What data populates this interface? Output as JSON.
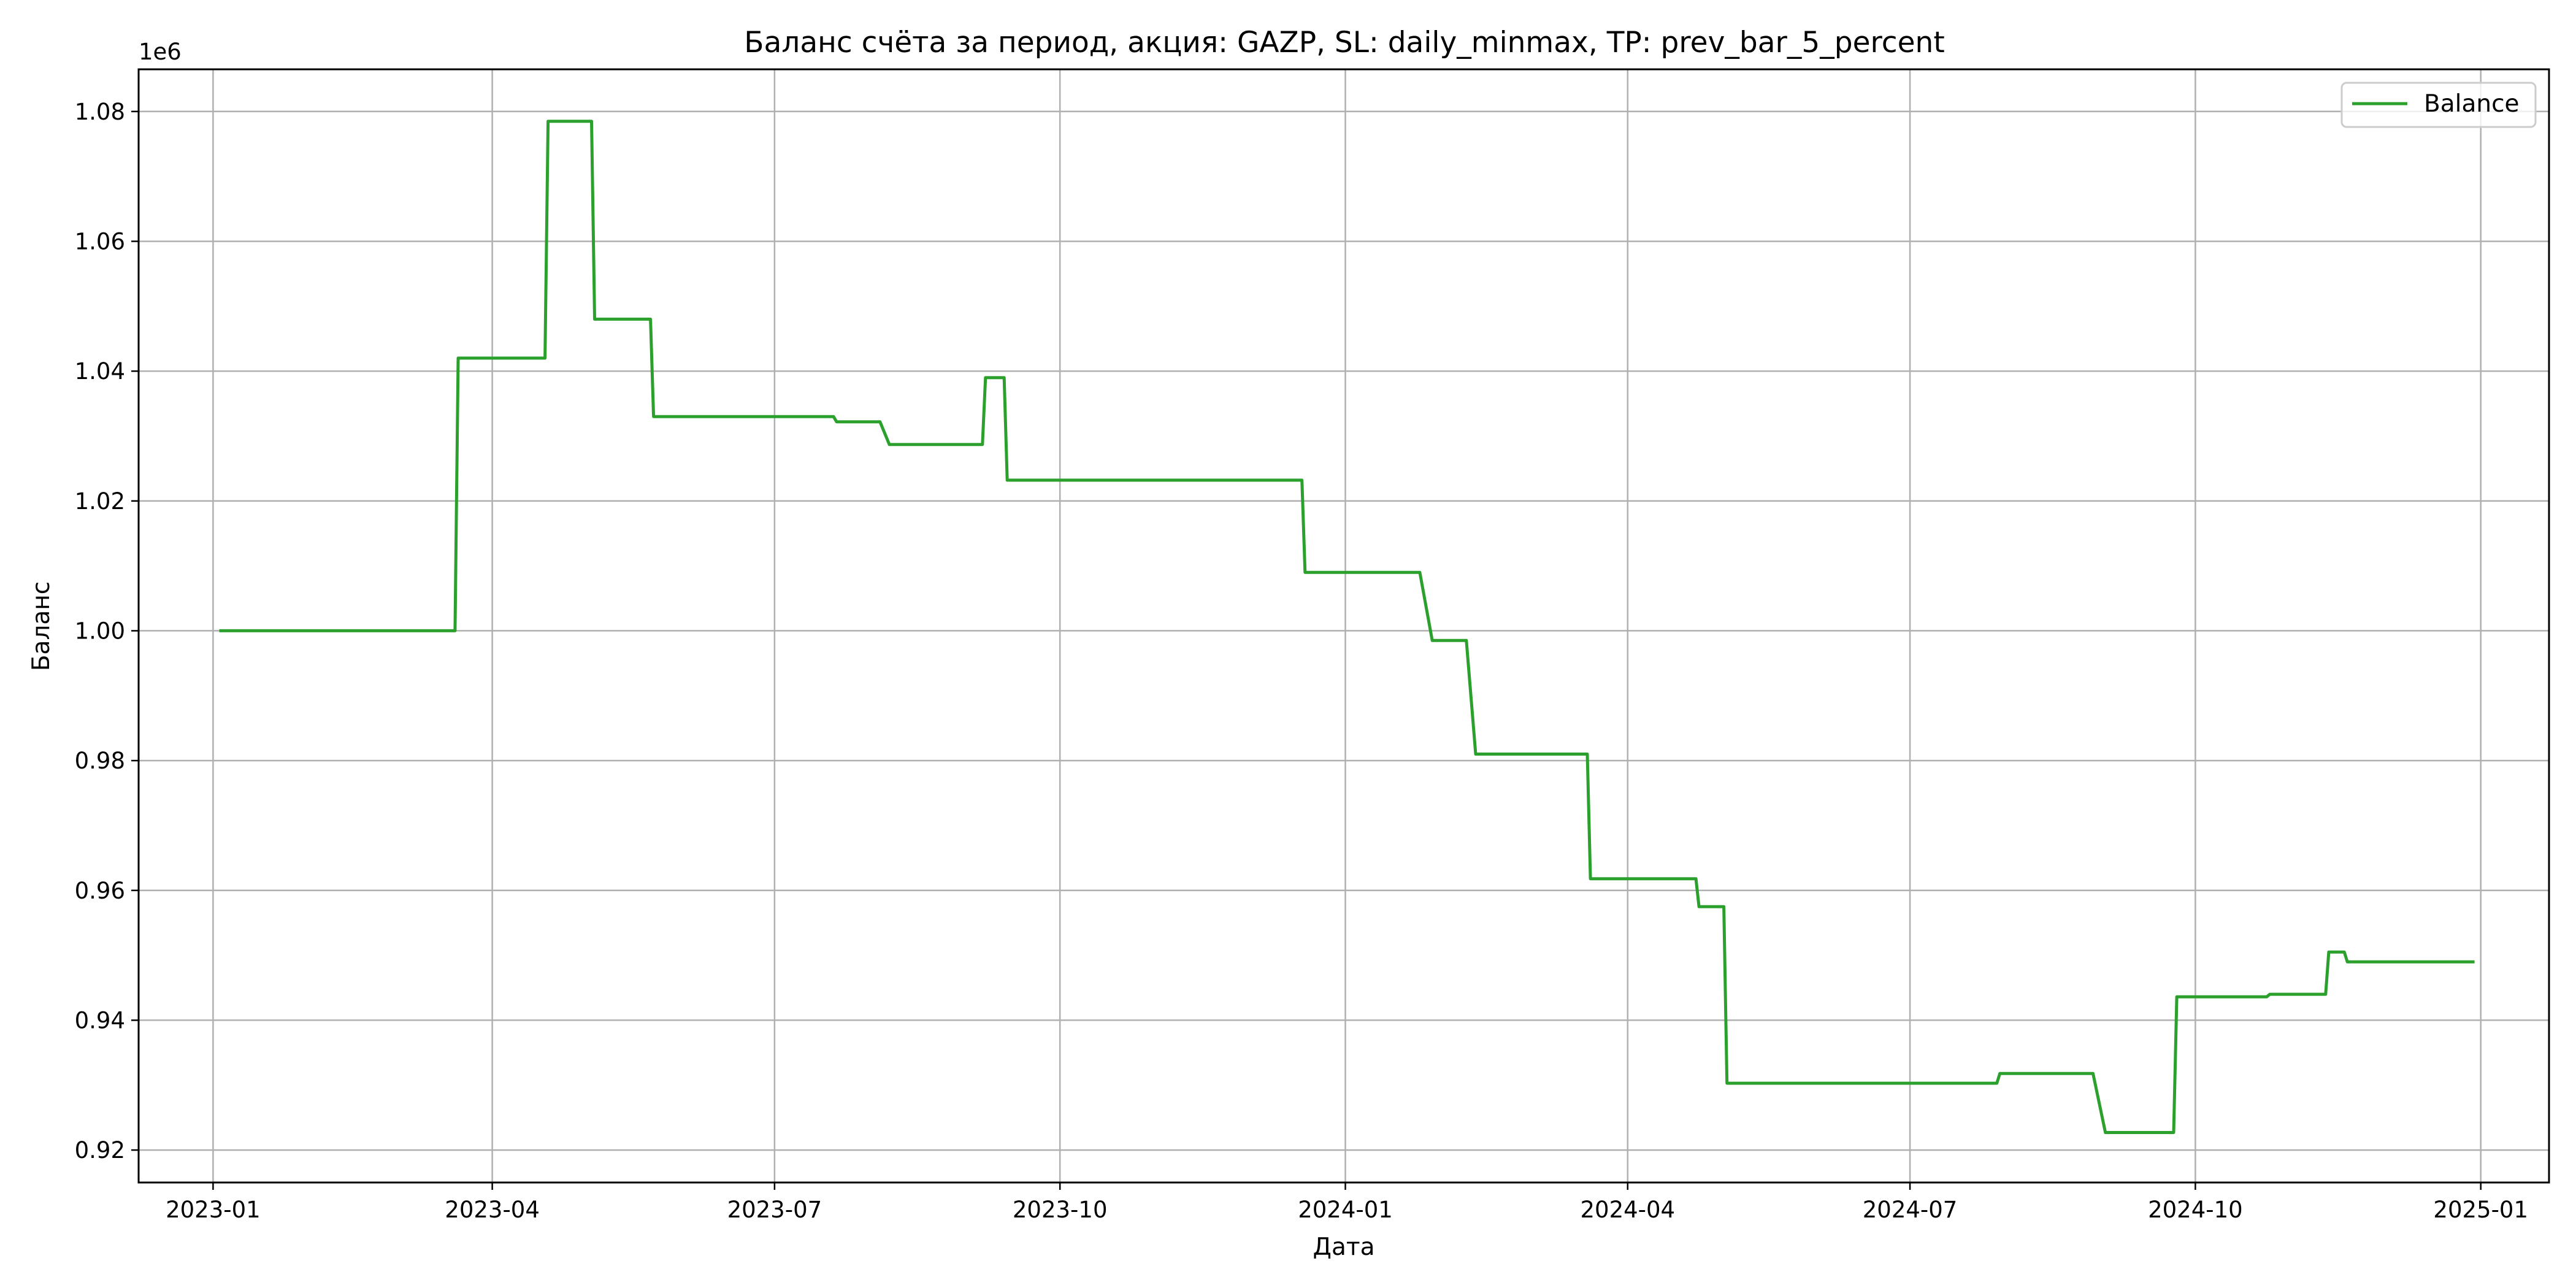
{
  "chart_data": {
    "type": "line",
    "title": "Баланс счёта за период, акция: GAZP, SL: daily_minmax, TP: prev_bar_5_percent",
    "xlabel": "Дата",
    "ylabel": "Баланс",
    "y_offset_label": "1e6",
    "xlim": [
      "2022-12-08",
      "2025-01-23"
    ],
    "ylim": [
      0.915,
      1.0865
    ],
    "x_ticks": [
      "2023-01",
      "2023-04",
      "2023-07",
      "2023-10",
      "2024-01",
      "2024-04",
      "2024-07",
      "2024-10",
      "2025-01"
    ],
    "y_ticks": [
      "0.92",
      "0.94",
      "0.96",
      "0.98",
      "1.00",
      "1.02",
      "1.04",
      "1.06",
      "1.08"
    ],
    "grid": true,
    "legend_position": "top-right",
    "series": [
      {
        "name": "Balance",
        "color": "#2ca02c",
        "x": [
          "2023-01-03",
          "2023-03-20",
          "2023-03-21",
          "2023-04-18",
          "2023-04-19",
          "2023-05-03",
          "2023-05-04",
          "2023-05-22",
          "2023-05-23",
          "2023-07-20",
          "2023-07-21",
          "2023-08-04",
          "2023-08-07",
          "2023-09-06",
          "2023-09-07",
          "2023-09-13",
          "2023-09-14",
          "2023-12-18",
          "2023-12-19",
          "2024-01-25",
          "2024-01-29",
          "2024-02-09",
          "2024-02-12",
          "2024-03-19",
          "2024-03-20",
          "2024-04-23",
          "2024-04-24",
          "2024-05-02",
          "2024-05-03",
          "2024-07-29",
          "2024-07-30",
          "2024-08-29",
          "2024-09-02",
          "2024-09-24",
          "2024-09-25",
          "2024-10-24",
          "2024-10-25",
          "2024-11-12",
          "2024-11-13",
          "2024-11-18",
          "2024-11-19",
          "2024-12-30"
        ],
        "y": [
          1.0,
          1.0,
          1.042,
          1.042,
          1.0785,
          1.0785,
          1.048,
          1.048,
          1.033,
          1.033,
          1.0322,
          1.0322,
          1.0287,
          1.0287,
          1.039,
          1.039,
          1.0232,
          1.0232,
          1.009,
          1.009,
          0.9985,
          0.9985,
          0.981,
          0.981,
          0.9618,
          0.9618,
          0.9575,
          0.9575,
          0.9303,
          0.9303,
          0.9318,
          0.9318,
          0.9227,
          0.9227,
          0.9436,
          0.9436,
          0.944,
          0.944,
          0.9505,
          0.9505,
          0.949,
          0.949
        ]
      }
    ]
  }
}
